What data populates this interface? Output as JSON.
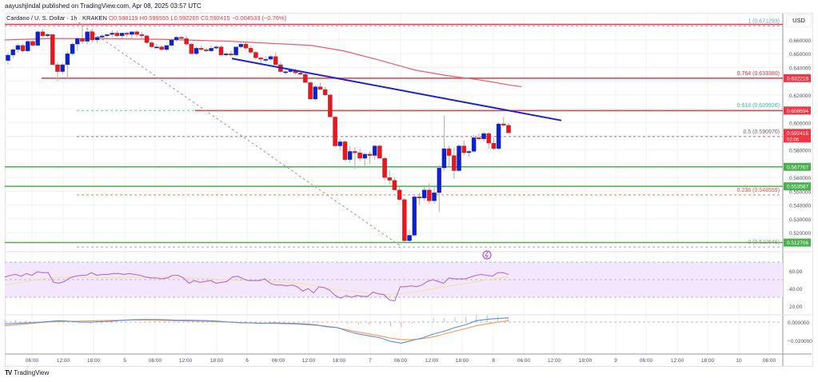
{
  "header": {
    "publisher": "aayushjindal published on TradingView.com, Apr 08, 2025 03:57 UTC",
    "symbol": "Cardano / U. S. Dollar · 1h · KRAKEN",
    "open": "O0.598119",
    "high": "H0.599555",
    "low": "L0.592265",
    "close": "C0.592415",
    "change": "−0.004533 (−0.76%)"
  },
  "currency": "USD",
  "footer": {
    "brand": "TradingView",
    "logo_icon": "tradingview-logo-icon"
  },
  "colors": {
    "up": "#0a1fd8",
    "down": "#f2121c",
    "trendline": "#1b21d6",
    "ma": "#f25a6a",
    "resistance": "#f23645",
    "support": "#4caf50",
    "rsi": "#b46bd1",
    "rsi_ma": "#f7e29a",
    "rsi_band": "#f3e7fd",
    "macd": "#5b8cf0",
    "signal": "#f39a54",
    "hist_pos": "#9fd6cf",
    "hist_neg": "#f7a8ae"
  },
  "chart_data": [
    {
      "type": "candlestick",
      "title": "Cardano / U. S. Dollar · 1h · KRAKEN",
      "xlabel": "",
      "ylabel": "USD",
      "ylim": [
        0.508,
        0.675
      ],
      "x_ticks": [
        "06:00",
        "12:00",
        "18:00",
        "5",
        "06:00",
        "12:00",
        "18:00",
        "6",
        "06:00",
        "12:00",
        "18:00",
        "7",
        "06:00",
        "12:00",
        "18:00",
        "8",
        "06:00",
        "12:00",
        "18:00",
        "9",
        "06:00",
        "12:00",
        "18:00",
        "10",
        "06:00"
      ],
      "y_ticks": [
        "0.660000",
        "0.650000",
        "0.640000",
        "0.620000",
        "0.600000",
        "0.580000",
        "0.560000",
        "0.550000",
        "0.540000",
        "0.530000",
        "0.520000"
      ],
      "price_labels": [
        {
          "value": "0.632219",
          "color": "#f23645"
        },
        {
          "value": "0.608694",
          "color": "#f23645"
        },
        {
          "value": "0.592415",
          "sub": "02:06",
          "color": "#f23645"
        },
        {
          "value": "0.567767",
          "color": "#4caf50"
        },
        {
          "value": "0.553587",
          "color": "#4caf50"
        },
        {
          "value": "0.512706",
          "color": "#4caf50"
        }
      ],
      "fibonacci": [
        {
          "level": "1 (0.671293)",
          "price": 0.671293,
          "color": "#6aa6e6"
        },
        {
          "level": "0.764 (0.633380)",
          "price": 0.63338,
          "color": "#c4373f"
        },
        {
          "level": "0.618 (0.609926)",
          "price": 0.609926,
          "color": "#3fbf9a"
        },
        {
          "level": "0.5 (0.590970)",
          "price": 0.59097,
          "color": "#8e5a6c"
        },
        {
          "level": "0.236 (0.548559)",
          "price": 0.548559,
          "color": "#e5534b"
        },
        {
          "level": "0 (0.510646)",
          "price": 0.510646,
          "color": "#9b9b9b"
        }
      ],
      "horizontal_lines": [
        {
          "price": 0.671293,
          "color": "#f23645",
          "x_start": 6
        },
        {
          "price": 0.632219,
          "color": "#f23645",
          "x_start": 52
        },
        {
          "price": 0.608694,
          "color": "#f23645",
          "x_start": 244
        },
        {
          "price": 0.567767,
          "color": "#4caf50",
          "x_start": 6
        },
        {
          "price": 0.553587,
          "color": "#4caf50",
          "x_start": 6
        },
        {
          "price": 0.512706,
          "color": "#4caf50",
          "x_start": 6
        }
      ],
      "trendline": {
        "from": [
          290,
          0.6465
        ],
        "to": [
          702,
          0.6015
        ]
      },
      "candles": [
        [
          0.645,
          0.651,
          0.642,
          0.649
        ],
        [
          0.649,
          0.654,
          0.647,
          0.653
        ],
        [
          0.653,
          0.657,
          0.651,
          0.656
        ],
        [
          0.656,
          0.657,
          0.651,
          0.652
        ],
        [
          0.652,
          0.66,
          0.651,
          0.659
        ],
        [
          0.659,
          0.66,
          0.655,
          0.656
        ],
        [
          0.656,
          0.667,
          0.655,
          0.666
        ],
        [
          0.666,
          0.668,
          0.662,
          0.663
        ],
        [
          0.663,
          0.665,
          0.661,
          0.664
        ],
        [
          0.664,
          0.664,
          0.642,
          0.642
        ],
        [
          0.642,
          0.644,
          0.63,
          0.637
        ],
        [
          0.637,
          0.643,
          0.635,
          0.642
        ],
        [
          0.642,
          0.652,
          0.632,
          0.65
        ],
        [
          0.65,
          0.658,
          0.649,
          0.657
        ],
        [
          0.657,
          0.662,
          0.652,
          0.661
        ],
        [
          0.661,
          0.672,
          0.657,
          0.659
        ],
        [
          0.659,
          0.668,
          0.657,
          0.666
        ],
        [
          0.666,
          0.668,
          0.658,
          0.66
        ],
        [
          0.66,
          0.663,
          0.658,
          0.662
        ],
        [
          0.662,
          0.664,
          0.66,
          0.663
        ],
        [
          0.663,
          0.664,
          0.661,
          0.664
        ],
        [
          0.664,
          0.667,
          0.662,
          0.665
        ],
        [
          0.665,
          0.667,
          0.662,
          0.663
        ],
        [
          0.663,
          0.665,
          0.661,
          0.665
        ],
        [
          0.665,
          0.666,
          0.662,
          0.664
        ],
        [
          0.664,
          0.666,
          0.66,
          0.666
        ],
        [
          0.666,
          0.667,
          0.662,
          0.664
        ],
        [
          0.664,
          0.666,
          0.66,
          0.663
        ],
        [
          0.663,
          0.664,
          0.657,
          0.658
        ],
        [
          0.658,
          0.659,
          0.654,
          0.655
        ],
        [
          0.655,
          0.657,
          0.654,
          0.655
        ],
        [
          0.655,
          0.656,
          0.653,
          0.653
        ],
        [
          0.653,
          0.656,
          0.652,
          0.656
        ],
        [
          0.656,
          0.661,
          0.655,
          0.66
        ],
        [
          0.66,
          0.663,
          0.659,
          0.662
        ],
        [
          0.662,
          0.663,
          0.66,
          0.661
        ],
        [
          0.661,
          0.663,
          0.656,
          0.657
        ],
        [
          0.657,
          0.658,
          0.65,
          0.65
        ],
        [
          0.65,
          0.655,
          0.649,
          0.654
        ],
        [
          0.654,
          0.656,
          0.652,
          0.653
        ],
        [
          0.653,
          0.654,
          0.651,
          0.652
        ],
        [
          0.652,
          0.656,
          0.651,
          0.654
        ],
        [
          0.654,
          0.656,
          0.653,
          0.655
        ],
        [
          0.655,
          0.656,
          0.649,
          0.649
        ],
        [
          0.649,
          0.651,
          0.648,
          0.65
        ],
        [
          0.65,
          0.652,
          0.648,
          0.649
        ],
        [
          0.649,
          0.655,
          0.648,
          0.655
        ],
        [
          0.655,
          0.658,
          0.654,
          0.657
        ],
        [
          0.657,
          0.658,
          0.653,
          0.654
        ],
        [
          0.654,
          0.656,
          0.65,
          0.651
        ],
        [
          0.651,
          0.652,
          0.646,
          0.647
        ],
        [
          0.647,
          0.648,
          0.642,
          0.646
        ],
        [
          0.646,
          0.648,
          0.644,
          0.646
        ],
        [
          0.646,
          0.649,
          0.645,
          0.648
        ],
        [
          0.648,
          0.651,
          0.646,
          0.642
        ],
        [
          0.642,
          0.644,
          0.637,
          0.637
        ],
        [
          0.637,
          0.638,
          0.635,
          0.637
        ],
        [
          0.637,
          0.639,
          0.636,
          0.638
        ],
        [
          0.638,
          0.639,
          0.635,
          0.636
        ],
        [
          0.636,
          0.637,
          0.634,
          0.635
        ],
        [
          0.635,
          0.636,
          0.629,
          0.629
        ],
        [
          0.629,
          0.63,
          0.617,
          0.617
        ],
        [
          0.617,
          0.627,
          0.616,
          0.626
        ],
        [
          0.626,
          0.629,
          0.624,
          0.624
        ],
        [
          0.624,
          0.626,
          0.619,
          0.62
        ],
        [
          0.62,
          0.621,
          0.604,
          0.604
        ],
        [
          0.604,
          0.605,
          0.582,
          0.583
        ],
        [
          0.583,
          0.588,
          0.58,
          0.586
        ],
        [
          0.586,
          0.587,
          0.572,
          0.573
        ],
        [
          0.573,
          0.583,
          0.571,
          0.579
        ],
        [
          0.579,
          0.582,
          0.566,
          0.578
        ],
        [
          0.578,
          0.581,
          0.572,
          0.574
        ],
        [
          0.574,
          0.578,
          0.567,
          0.577
        ],
        [
          0.577,
          0.579,
          0.57,
          0.576
        ],
        [
          0.576,
          0.584,
          0.573,
          0.583
        ],
        [
          0.583,
          0.584,
          0.574,
          0.574
        ],
        [
          0.574,
          0.575,
          0.558,
          0.56
        ],
        [
          0.56,
          0.565,
          0.555,
          0.558
        ],
        [
          0.558,
          0.56,
          0.552,
          0.551
        ],
        [
          0.551,
          0.553,
          0.543,
          0.544
        ],
        [
          0.544,
          0.545,
          0.513,
          0.514
        ],
        [
          0.514,
          0.522,
          0.513,
          0.518
        ],
        [
          0.518,
          0.547,
          0.517,
          0.546
        ],
        [
          0.546,
          0.549,
          0.54,
          0.545
        ],
        [
          0.545,
          0.553,
          0.543,
          0.551
        ],
        [
          0.551,
          0.556,
          0.541,
          0.543
        ],
        [
          0.543,
          0.553,
          0.541,
          0.549
        ],
        [
          0.549,
          0.569,
          0.535,
          0.567
        ],
        [
          0.567,
          0.605,
          0.565,
          0.581
        ],
        [
          0.581,
          0.583,
          0.568,
          0.576
        ],
        [
          0.576,
          0.582,
          0.559,
          0.565
        ],
        [
          0.565,
          0.584,
          0.564,
          0.583
        ],
        [
          0.583,
          0.587,
          0.576,
          0.578
        ],
        [
          0.578,
          0.58,
          0.575,
          0.579
        ],
        [
          0.579,
          0.591,
          0.578,
          0.589
        ],
        [
          0.589,
          0.592,
          0.587,
          0.588
        ],
        [
          0.588,
          0.593,
          0.586,
          0.592
        ],
        [
          0.592,
          0.593,
          0.581,
          0.585
        ],
        [
          0.585,
          0.589,
          0.58,
          0.581
        ],
        [
          0.581,
          0.6,
          0.58,
          0.599
        ],
        [
          0.599,
          0.604,
          0.597,
          0.598
        ],
        [
          0.598,
          0.5996,
          0.5923,
          0.5924
        ]
      ],
      "moving_average": [
        [
          6,
          0.66
        ],
        [
          60,
          0.661
        ],
        [
          120,
          0.661
        ],
        [
          200,
          0.6605
        ],
        [
          290,
          0.659
        ],
        [
          390,
          0.656
        ],
        [
          430,
          0.652
        ],
        [
          470,
          0.646
        ],
        [
          520,
          0.638
        ],
        [
          560,
          0.634
        ],
        [
          600,
          0.631
        ],
        [
          640,
          0.627
        ],
        [
          652,
          0.626
        ]
      ],
      "rsi": {
        "ylim": [
          0,
          100
        ],
        "y_ticks": [
          "60.00",
          "40.00",
          "20.00"
        ],
        "band": [
          30,
          70
        ]
      },
      "macd": {
        "y_ticks": [
          "0.000000",
          "−0.020000"
        ]
      }
    }
  ]
}
